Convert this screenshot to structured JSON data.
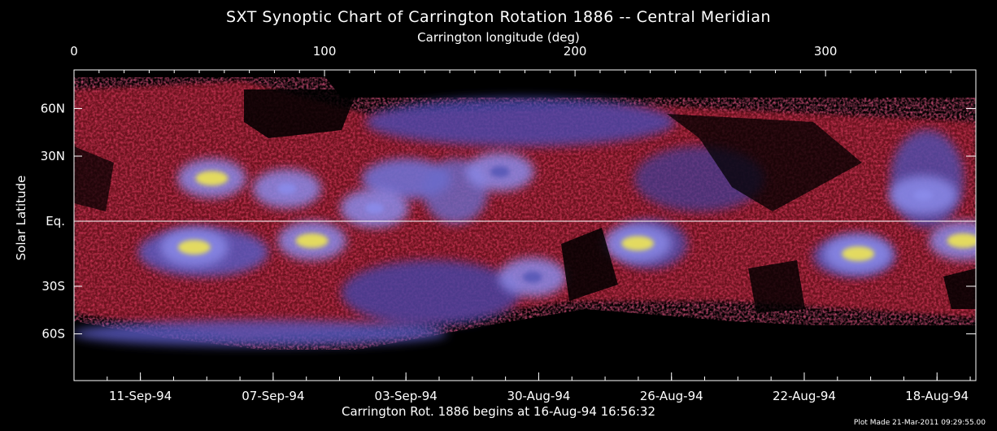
{
  "title": "SXT Synoptic Chart of Carrington Rotation 1886 -- Central Meridian",
  "top_axis": {
    "label": "Carrington longitude (deg)",
    "ticks": [
      {
        "value": 0,
        "label": "0"
      },
      {
        "value": 100,
        "label": "100"
      },
      {
        "value": 200,
        "label": "200"
      },
      {
        "value": 300,
        "label": "300"
      }
    ],
    "range": [
      0,
      360
    ]
  },
  "y_axis": {
    "label": "Solar Latitude",
    "ticks": [
      {
        "label": "60N",
        "sin_lat": 0.866
      },
      {
        "label": "30N",
        "sin_lat": 0.5
      },
      {
        "label": "Eq.",
        "sin_lat": 0.0
      },
      {
        "label": "30S",
        "sin_lat": -0.5
      },
      {
        "label": "60S",
        "sin_lat": -0.866
      }
    ],
    "scale": "sine-latitude"
  },
  "bottom_axis": {
    "caption": "Carrington Rot. 1886 begins at 16-Aug-94 16:56:32",
    "ticks": [
      {
        "label": "11-Sep-94",
        "longitude": 26.5
      },
      {
        "label": "07-Sep-94",
        "longitude": 79.5
      },
      {
        "label": "03-Sep-94",
        "longitude": 132.5
      },
      {
        "label": "30-Aug-94",
        "longitude": 185.5
      },
      {
        "label": "26-Aug-94",
        "longitude": 238.5
      },
      {
        "label": "22-Aug-94",
        "longitude": 291.5
      },
      {
        "label": "18-Aug-94",
        "longitude": 344.5
      }
    ]
  },
  "footer": {
    "plot_made": "Plot Made 21-Mar-2011 09:29:55.00"
  },
  "colors": {
    "background": "#000000",
    "emission_low": "#d81e3c",
    "emission_mid": "#5a5ab8",
    "emission_high": "#8a8ae8",
    "emission_peak": "#e8e05a",
    "axis": "#ffffff"
  },
  "bright_regions": [
    {
      "name": "active-region",
      "lon": 48,
      "sin_lat": -0.2,
      "intensity": "peak"
    },
    {
      "name": "active-region",
      "lon": 95,
      "sin_lat": -0.15,
      "intensity": "peak"
    },
    {
      "name": "active-region",
      "lon": 85,
      "sin_lat": 0.25,
      "intensity": "high"
    },
    {
      "name": "active-region",
      "lon": 120,
      "sin_lat": 0.1,
      "intensity": "high"
    },
    {
      "name": "active-region",
      "lon": 170,
      "sin_lat": 0.38,
      "intensity": "mid"
    },
    {
      "name": "active-region",
      "lon": 225,
      "sin_lat": -0.17,
      "intensity": "peak"
    },
    {
      "name": "active-region",
      "lon": 313,
      "sin_lat": -0.25,
      "intensity": "peak"
    },
    {
      "name": "active-region",
      "lon": 339,
      "sin_lat": 0.2,
      "intensity": "high"
    },
    {
      "name": "active-region",
      "lon": 355,
      "sin_lat": -0.15,
      "intensity": "peak"
    },
    {
      "name": "active-region",
      "lon": 55,
      "sin_lat": 0.33,
      "intensity": "peak"
    },
    {
      "name": "active-region",
      "lon": 183,
      "sin_lat": -0.43,
      "intensity": "mid"
    }
  ]
}
